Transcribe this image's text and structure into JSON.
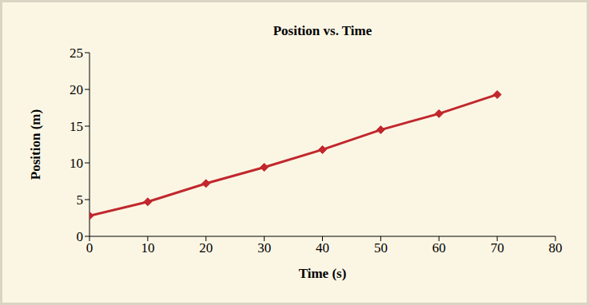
{
  "chart_data": {
    "type": "line",
    "title": "Position vs. Time",
    "x_label": "Time (s)",
    "y_label": "Position (m)",
    "x": [
      0,
      10,
      20,
      30,
      40,
      50,
      60,
      70
    ],
    "values": [
      2.8,
      4.7,
      7.2,
      9.4,
      11.8,
      14.5,
      16.7,
      19.3
    ],
    "color": "#c1272d",
    "marker": "diamond",
    "line_style": "solid",
    "xlim": [
      0,
      80
    ],
    "xticks": [
      0,
      10,
      20,
      30,
      40,
      50,
      60,
      70,
      80
    ],
    "ylim": [
      0,
      25
    ],
    "yticks": [
      0,
      5,
      10,
      15,
      20,
      25
    ],
    "grid": false
  }
}
